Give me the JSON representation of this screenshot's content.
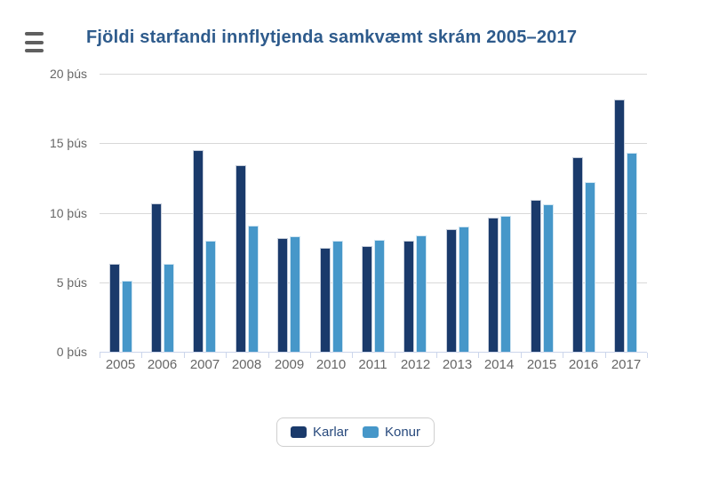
{
  "header": {
    "menu_icon": "hamburger-icon"
  },
  "chart_data": {
    "type": "bar",
    "title": "Fjöldi starfandi innflytjenda samkvæmt skrám 2005–2017",
    "categories": [
      "2005",
      "2006",
      "2007",
      "2008",
      "2009",
      "2010",
      "2011",
      "2012",
      "2013",
      "2014",
      "2015",
      "2016",
      "2017"
    ],
    "series": [
      {
        "name": "Karlar",
        "color": "#1a3a6b",
        "values": [
          6300,
          10650,
          14500,
          13450,
          8150,
          7500,
          7600,
          8000,
          8800,
          9650,
          10950,
          14000,
          18150
        ]
      },
      {
        "name": "Konur",
        "color": "#4697c9",
        "values": [
          5100,
          6350,
          8000,
          9100,
          8300,
          8000,
          8050,
          8400,
          9000,
          9750,
          10600,
          12200,
          14300
        ]
      }
    ],
    "ylim": [
      0,
      20000
    ],
    "yticks": [
      0,
      5000,
      10000,
      15000,
      20000
    ],
    "ytick_labels": [
      "0 þús",
      "5 þús",
      "10 þús",
      "15 þús",
      "20 þús"
    ],
    "xlabel": "",
    "ylabel": "",
    "grid": true,
    "legend_position": "bottom-center",
    "colors": {
      "title": "#2e5b8c",
      "axis_labels": "#666666",
      "gridline": "#d8d8d8",
      "axis_line": "#ccd6eb",
      "legend_text": "#27497c"
    }
  }
}
